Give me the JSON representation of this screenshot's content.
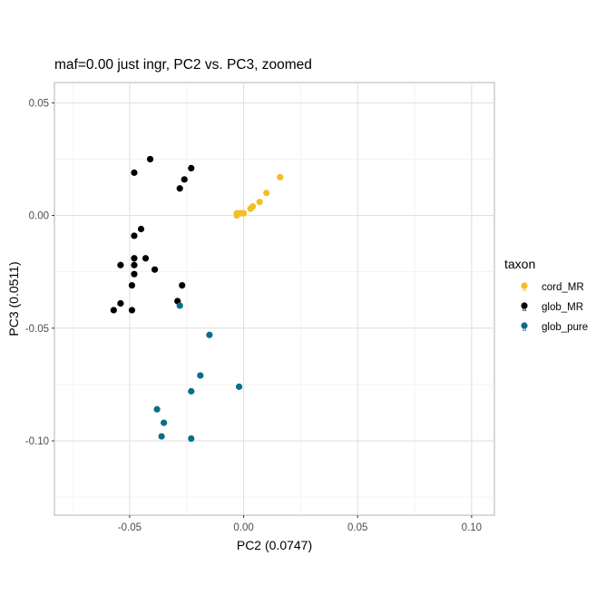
{
  "chart_data": {
    "type": "scatter",
    "title": "maf=0.00 just ingr, PC2 vs. PC3, zoomed",
    "xlabel": "PC2 (0.0747)",
    "ylabel": "PC3 (0.0511)",
    "xlim": [
      -0.083,
      0.11
    ],
    "ylim": [
      -0.133,
      0.059
    ],
    "xticks": [
      -0.05,
      0.0,
      0.05,
      0.1
    ],
    "xtick_labels": [
      "-0.05",
      "0.00",
      "0.05",
      "0.10"
    ],
    "yticks": [
      -0.1,
      -0.05,
      0.0,
      0.05
    ],
    "ytick_labels": [
      "-0.10",
      "-0.05",
      "0.00",
      "0.05"
    ],
    "grid": true,
    "legend": {
      "title": "taxon",
      "placement": "right",
      "glyph": "a"
    },
    "series": [
      {
        "name": "cord_MR",
        "color": "#F5BE28",
        "points": [
          [
            0.016,
            0.017
          ],
          [
            0.01,
            0.01
          ],
          [
            0.007,
            0.006
          ],
          [
            0.004,
            0.004
          ],
          [
            0.003,
            0.003
          ],
          [
            0.0,
            0.001
          ],
          [
            -0.001,
            0.001
          ],
          [
            -0.002,
            0.001
          ],
          [
            -0.003,
            0.0
          ],
          [
            -0.003,
            0.001
          ]
        ]
      },
      {
        "name": "glob_MR",
        "color": "#000000",
        "points": [
          [
            -0.041,
            0.025
          ],
          [
            -0.023,
            0.021
          ],
          [
            -0.048,
            0.019
          ],
          [
            -0.026,
            0.016
          ],
          [
            -0.028,
            0.012
          ],
          [
            -0.045,
            -0.006
          ],
          [
            -0.048,
            -0.009
          ],
          [
            -0.048,
            -0.019
          ],
          [
            -0.043,
            -0.019
          ],
          [
            -0.054,
            -0.022
          ],
          [
            -0.048,
            -0.022
          ],
          [
            -0.039,
            -0.024
          ],
          [
            -0.048,
            -0.026
          ],
          [
            -0.049,
            -0.031
          ],
          [
            -0.027,
            -0.031
          ],
          [
            -0.054,
            -0.039
          ],
          [
            -0.029,
            -0.038
          ],
          [
            -0.057,
            -0.042
          ],
          [
            -0.049,
            -0.042
          ]
        ]
      },
      {
        "name": "glob_pure",
        "color": "#0A6E8A",
        "points": [
          [
            -0.028,
            -0.04
          ],
          [
            -0.015,
            -0.053
          ],
          [
            -0.019,
            -0.071
          ],
          [
            -0.002,
            -0.076
          ],
          [
            -0.023,
            -0.078
          ],
          [
            -0.038,
            -0.086
          ],
          [
            -0.035,
            -0.092
          ],
          [
            -0.036,
            -0.098
          ],
          [
            -0.023,
            -0.099
          ]
        ]
      }
    ]
  }
}
